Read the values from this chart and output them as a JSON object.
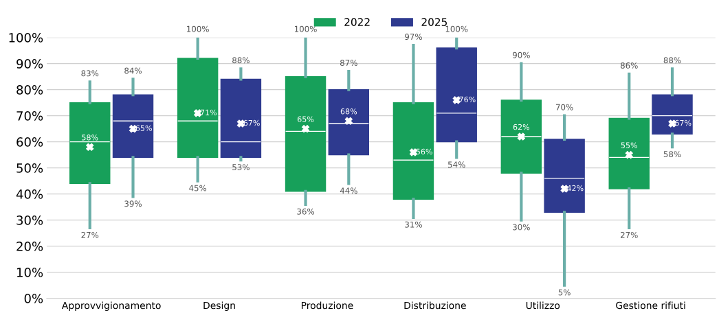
{
  "chart_data": {
    "type": "box",
    "categories": [
      "Approvvigionamento",
      "Design",
      "Produzione",
      "Distribuzione",
      "Utilizzo",
      "Gestione rifiuti"
    ],
    "series": [
      {
        "name": "2022",
        "color": "#17a05a",
        "boxes": [
          {
            "low": 27,
            "q1": 44,
            "median": 60,
            "q3": 75,
            "high": 83,
            "mean": 58
          },
          {
            "low": 45,
            "q1": 54,
            "median": 68,
            "q3": 92,
            "high": 100,
            "mean": 71
          },
          {
            "low": 36,
            "q1": 41,
            "median": 64,
            "q3": 85,
            "high": 100,
            "mean": 65
          },
          {
            "low": 31,
            "q1": 38,
            "median": 53,
            "q3": 75,
            "high": 97,
            "mean": 56
          },
          {
            "low": 30,
            "q1": 48,
            "median": 62,
            "q3": 76,
            "high": 90,
            "mean": 62
          },
          {
            "low": 27,
            "q1": 42,
            "median": 54,
            "q3": 69,
            "high": 86,
            "mean": 55
          }
        ]
      },
      {
        "name": "2025",
        "color": "#2e3a8f",
        "boxes": [
          {
            "low": 39,
            "q1": 54,
            "median": 68,
            "q3": 78,
            "high": 84,
            "mean": 65
          },
          {
            "low": 53,
            "q1": 54,
            "median": 60,
            "q3": 84,
            "high": 88,
            "mean": 67
          },
          {
            "low": 44,
            "q1": 55,
            "median": 67,
            "q3": 80,
            "high": 87,
            "mean": 68
          },
          {
            "low": 54,
            "q1": 60,
            "median": 71,
            "q3": 96,
            "high": 100,
            "mean": 76
          },
          {
            "low": 5,
            "q1": 33,
            "median": 46,
            "q3": 61,
            "high": 70,
            "mean": 42
          },
          {
            "low": 58,
            "q1": 63,
            "median": 70,
            "q3": 78,
            "high": 88,
            "mean": 67
          }
        ]
      }
    ],
    "ylim": [
      0,
      100
    ],
    "annotations": [
      "83%",
      "27%",
      "58%",
      "84%",
      "39%",
      "65%",
      "100%",
      "45%",
      "71%",
      "88%",
      "53%",
      "67%",
      "100%",
      "36%",
      "65%",
      "87%",
      "44%",
      "68%",
      "97%",
      "31%",
      "56%",
      "100%",
      "54%",
      "76%",
      "90%",
      "30%",
      "62%",
      "70%",
      "5%",
      "42%",
      "86%",
      "27%",
      "55%",
      "88%",
      "58%",
      "67%"
    ],
    "yticks": [
      {
        "value": 0,
        "label": "0%"
      },
      {
        "value": 10,
        "label": "10%"
      },
      {
        "value": 20,
        "label": "20%"
      },
      {
        "value": 30,
        "label": "30%"
      },
      {
        "value": 40,
        "label": "40%"
      },
      {
        "value": 50,
        "label": "50%"
      },
      {
        "value": 60,
        "label": "60%"
      },
      {
        "value": 70,
        "label": "70%"
      },
      {
        "value": 80,
        "label": "80%"
      },
      {
        "value": 90,
        "label": "90%"
      },
      {
        "value": 100,
        "label": "100%"
      }
    ],
    "grid": "y",
    "legend": "top",
    "marker": "cross"
  }
}
